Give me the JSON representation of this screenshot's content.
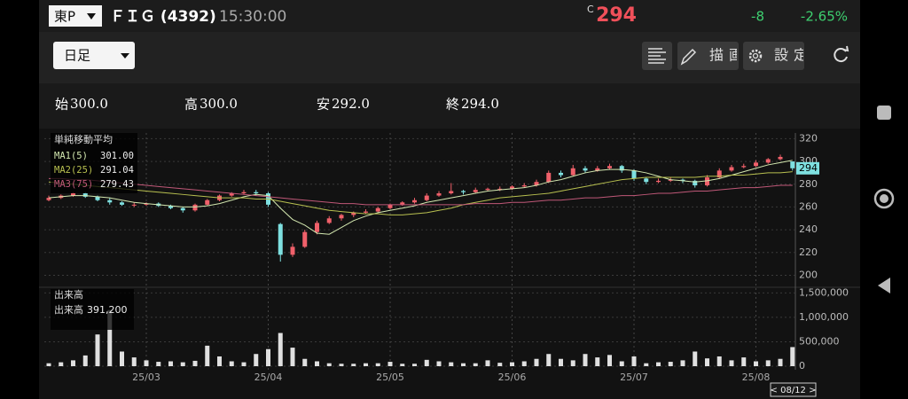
{
  "header": {
    "market": "東P",
    "name": "ＦＩＧ (4392)",
    "time": "15:30:00",
    "close_flag": "C",
    "price": 294,
    "change": -8,
    "change_pct": "-2.65%"
  },
  "toolbar": {
    "period": "日足",
    "draw": "描画",
    "settings": "設定"
  },
  "ohlc": [
    {
      "label": "始",
      "value": "300.0"
    },
    {
      "label": "高",
      "value": "300.0"
    },
    {
      "label": "安",
      "value": "292.0"
    },
    {
      "label": "終",
      "value": "294.0"
    }
  ],
  "chart_data": [
    {
      "type": "candlestick",
      "title": "単純移動平均",
      "up_color": "#f0606a",
      "down_color": "#7ee0e0",
      "grid": true,
      "ylim": [
        191,
        325
      ],
      "yticks": [
        200,
        220,
        240,
        260,
        280,
        300,
        320
      ],
      "candles": [
        [
          266,
          270,
          265,
          268
        ],
        [
          268,
          271,
          267,
          270
        ],
        [
          270,
          273,
          269,
          272
        ],
        [
          272,
          273,
          268,
          269
        ],
        [
          269,
          270,
          265,
          266
        ],
        [
          266,
          268,
          262,
          264
        ],
        [
          264,
          265,
          261,
          262
        ],
        [
          262,
          264,
          260,
          262
        ],
        [
          262,
          264,
          261,
          263
        ],
        [
          263,
          264,
          260,
          261
        ],
        [
          261,
          262,
          258,
          259
        ],
        [
          259,
          260,
          255,
          257
        ],
        [
          257,
          263,
          256,
          262
        ],
        [
          262,
          267,
          261,
          266
        ],
        [
          266,
          271,
          265,
          270
        ],
        [
          270,
          273,
          269,
          272
        ],
        [
          272,
          275,
          271,
          273
        ],
        [
          273,
          275,
          270,
          272
        ],
        [
          272,
          273,
          260,
          262
        ],
        [
          245,
          246,
          212,
          218
        ],
        [
          218,
          228,
          216,
          225
        ],
        [
          225,
          240,
          224,
          238
        ],
        [
          238,
          248,
          236,
          246
        ],
        [
          246,
          252,
          245,
          250
        ],
        [
          250,
          254,
          248,
          253
        ],
        [
          253,
          256,
          251,
          255
        ],
        [
          255,
          258,
          254,
          256
        ],
        [
          256,
          260,
          255,
          259
        ],
        [
          259,
          263,
          258,
          262
        ],
        [
          262,
          265,
          261,
          264
        ],
        [
          264,
          268,
          263,
          266
        ],
        [
          266,
          272,
          265,
          270
        ],
        [
          270,
          274,
          269,
          272
        ],
        [
          272,
          281,
          271,
          274
        ],
        [
          274,
          275,
          271,
          273
        ],
        [
          273,
          277,
          272,
          275
        ],
        [
          275,
          277,
          274,
          276
        ],
        [
          276,
          278,
          274,
          276
        ],
        [
          276,
          279,
          275,
          278
        ],
        [
          278,
          281,
          277,
          279
        ],
        [
          279,
          284,
          278,
          282
        ],
        [
          282,
          292,
          281,
          290
        ],
        [
          290,
          292,
          286,
          288
        ],
        [
          288,
          297,
          287,
          294
        ],
        [
          294,
          296,
          290,
          292
        ],
        [
          292,
          296,
          291,
          294
        ],
        [
          294,
          298,
          293,
          296
        ],
        [
          296,
          297,
          290,
          292
        ],
        [
          292,
          293,
          283,
          285
        ],
        [
          285,
          286,
          280,
          282
        ],
        [
          282,
          285,
          281,
          283
        ],
        [
          283,
          286,
          282,
          284
        ],
        [
          284,
          285,
          281,
          283
        ],
        [
          283,
          284,
          277,
          279
        ],
        [
          279,
          288,
          278,
          286
        ],
        [
          286,
          294,
          285,
          292
        ],
        [
          292,
          297,
          291,
          295
        ],
        [
          295,
          298,
          294,
          296
        ],
        [
          296,
          301,
          295,
          299
        ],
        [
          299,
          303,
          298,
          302
        ],
        [
          302,
          306,
          301,
          304
        ],
        [
          300,
          300,
          292,
          294
        ]
      ],
      "series": [
        {
          "name": "MA1(5)",
          "last": "301.00",
          "color": "#d4e8b0",
          "values": [
            268,
            269,
            270,
            270,
            269,
            268,
            266,
            264,
            263,
            262,
            261,
            260,
            260,
            261,
            263,
            266,
            269,
            271,
            270,
            259,
            249,
            244,
            237,
            236,
            242,
            248,
            252,
            255,
            257,
            259,
            261,
            264,
            266,
            268,
            270,
            272,
            274,
            275,
            276,
            277,
            279,
            282,
            284,
            287,
            290,
            292,
            293,
            293,
            292,
            290,
            287,
            284,
            283,
            282,
            283,
            285,
            288,
            291,
            294,
            297,
            299,
            301
          ]
        },
        {
          "name": "MA2(25)",
          "last": "291.04",
          "color": "#b8c050",
          "values": [
            282,
            281,
            280,
            279,
            278,
            277,
            276,
            275,
            274,
            273,
            272,
            271,
            270,
            269,
            268,
            268,
            268,
            267,
            267,
            265,
            263,
            261,
            259,
            257,
            256,
            255,
            254,
            254,
            253,
            253,
            254,
            255,
            257,
            259,
            262,
            264,
            266,
            268,
            269,
            270,
            271,
            272,
            274,
            276,
            278,
            280,
            282,
            284,
            285,
            286,
            286,
            286,
            286,
            286,
            287,
            287,
            288,
            288,
            289,
            290,
            290,
            291
          ]
        },
        {
          "name": "MA3(75)",
          "last": "279.43",
          "color": "#c05878",
          "values": [
            285,
            285,
            284,
            284,
            283,
            282,
            281,
            280,
            279,
            278,
            277,
            276,
            275,
            274,
            273,
            272,
            271,
            270,
            269,
            268,
            267,
            266,
            265,
            264,
            263,
            263,
            262,
            262,
            262,
            262,
            262,
            262,
            262,
            262,
            262,
            263,
            263,
            263,
            264,
            264,
            265,
            266,
            266,
            267,
            268,
            268,
            269,
            270,
            270,
            271,
            272,
            272,
            273,
            274,
            274,
            275,
            276,
            277,
            277,
            278,
            279,
            279
          ]
        }
      ]
    },
    {
      "type": "bar",
      "title": "出来高",
      "series_name": "出来高",
      "latest_label": "391,200",
      "color": "#e0e0e0",
      "cursor_date": "< 08/12 >",
      "ylim": [
        0,
        1580000
      ],
      "yticks": [
        0,
        {
          "value": 500000,
          "label": "500,000"
        },
        {
          "value": 1000000,
          "label": "1,000,000"
        },
        {
          "value": 1500000,
          "label": "1,500,000"
        }
      ],
      "categories": [
        null,
        null,
        null,
        null,
        null,
        null,
        null,
        null,
        "25/03",
        null,
        null,
        null,
        null,
        null,
        null,
        null,
        null,
        null,
        "25/04",
        null,
        null,
        null,
        null,
        null,
        null,
        null,
        null,
        null,
        "25/05",
        null,
        null,
        null,
        null,
        null,
        null,
        null,
        null,
        null,
        "25/06",
        null,
        null,
        null,
        null,
        null,
        null,
        null,
        null,
        null,
        "25/07",
        null,
        null,
        null,
        null,
        null,
        null,
        null,
        null,
        null,
        "25/08",
        null,
        null,
        null
      ],
      "values": [
        60000,
        80000,
        120000,
        220000,
        650000,
        1150000,
        300000,
        180000,
        120000,
        90000,
        100000,
        80000,
        110000,
        420000,
        200000,
        100000,
        80000,
        250000,
        350000,
        680000,
        380000,
        150000,
        100000,
        60000,
        50000,
        50000,
        60000,
        60000,
        90000,
        50000,
        50000,
        130000,
        100000,
        80000,
        60000,
        60000,
        120000,
        70000,
        80000,
        100000,
        150000,
        250000,
        150000,
        120000,
        250000,
        180000,
        230000,
        100000,
        200000,
        60000,
        80000,
        90000,
        120000,
        300000,
        160000,
        200000,
        120000,
        180000,
        100000,
        120000,
        150000,
        391200
      ]
    }
  ]
}
